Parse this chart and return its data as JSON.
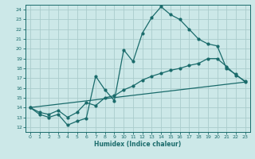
{
  "xlabel": "Humidex (Indice chaleur)",
  "ylabel": "",
  "bg_color": "#cce8e8",
  "grid_color": "#aacccc",
  "line_color": "#1a6b6b",
  "xlim": [
    -0.5,
    23.5
  ],
  "ylim": [
    11.5,
    24.5
  ],
  "yticks": [
    12,
    13,
    14,
    15,
    16,
    17,
    18,
    19,
    20,
    21,
    22,
    23,
    24
  ],
  "xticks": [
    0,
    1,
    2,
    3,
    4,
    5,
    6,
    7,
    8,
    9,
    10,
    11,
    12,
    13,
    14,
    15,
    16,
    17,
    18,
    19,
    20,
    21,
    22,
    23
  ],
  "line1_x": [
    0,
    1,
    2,
    3,
    4,
    5,
    6,
    7,
    8,
    9,
    10,
    11,
    12,
    13,
    14,
    15,
    16,
    17,
    18,
    19,
    20,
    21,
    22,
    23
  ],
  "line1_y": [
    14.0,
    13.3,
    13.0,
    13.3,
    12.2,
    12.6,
    12.9,
    17.2,
    15.8,
    14.7,
    19.9,
    18.7,
    21.6,
    23.2,
    24.3,
    23.5,
    23.0,
    22.0,
    21.0,
    20.5,
    20.3,
    18.0,
    17.4,
    16.6
  ],
  "line2_x": [
    0,
    1,
    2,
    3,
    4,
    5,
    6,
    7,
    8,
    9,
    10,
    11,
    12,
    13,
    14,
    15,
    16,
    17,
    18,
    19,
    20,
    21,
    22,
    23
  ],
  "line2_y": [
    14.0,
    13.5,
    13.3,
    13.7,
    13.0,
    13.5,
    14.5,
    14.2,
    15.0,
    15.2,
    15.8,
    16.2,
    16.8,
    17.2,
    17.5,
    17.8,
    18.0,
    18.3,
    18.5,
    19.0,
    19.0,
    18.2,
    17.3,
    16.7
  ],
  "line3_x": [
    0,
    23
  ],
  "line3_y": [
    14.0,
    16.6
  ]
}
